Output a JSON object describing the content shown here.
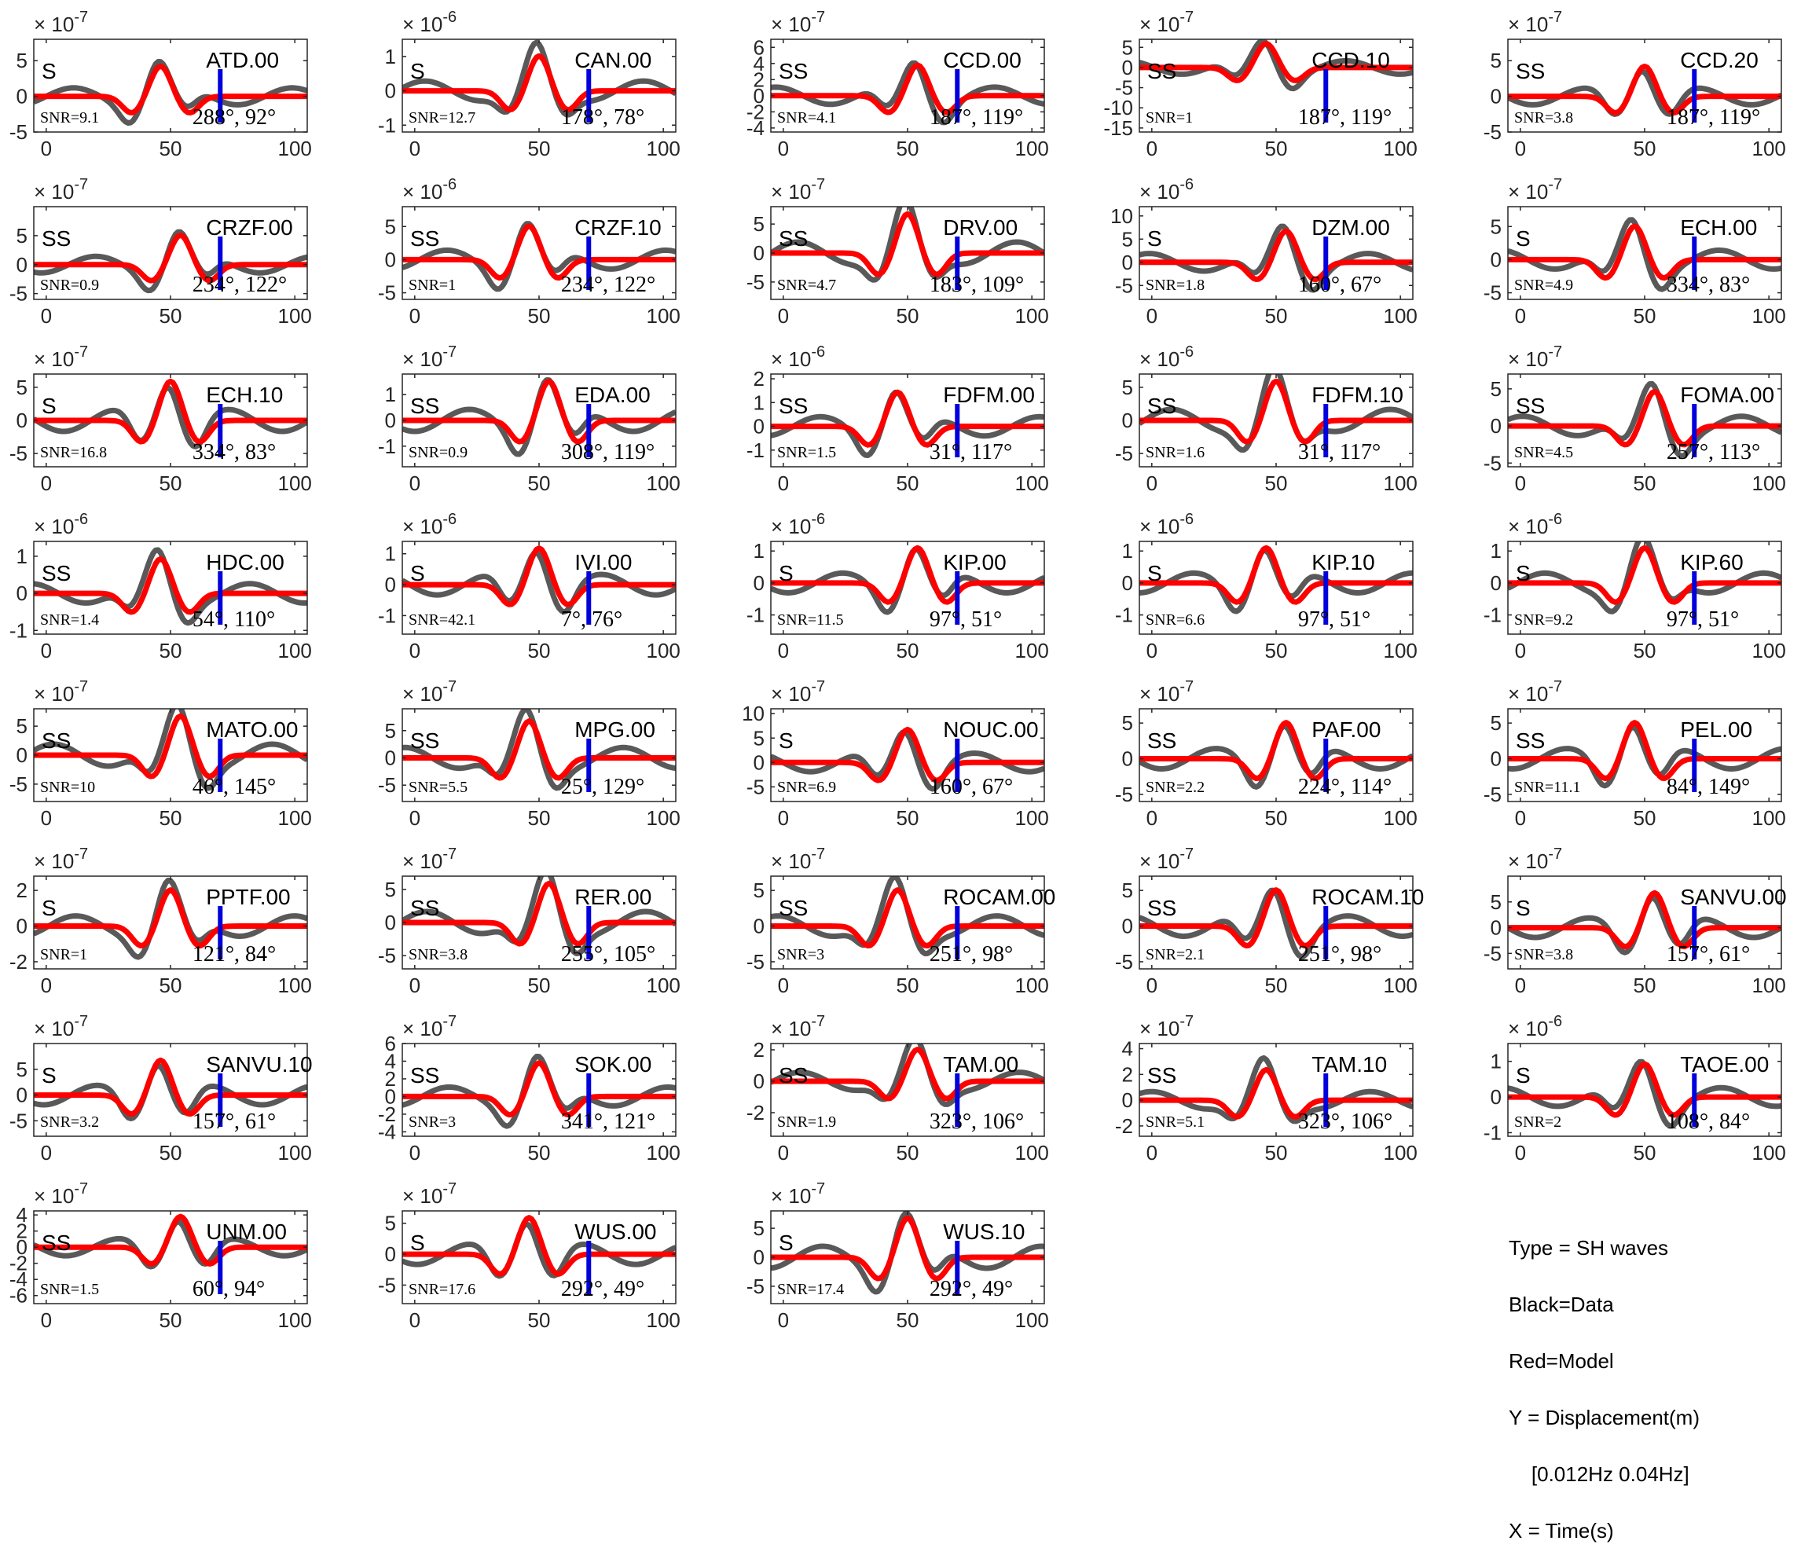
{
  "colors": {
    "data": "#595959",
    "model": "#ff0000",
    "marker": "#0000dd",
    "axes": "#262626"
  },
  "legend": {
    "lines": [
      "Type = SH waves",
      "Black=Data",
      "Red=Model",
      "Y = Displacement(m)",
      "    [0.012Hz 0.04Hz]",
      "X = Time(s)"
    ]
  },
  "chart_data": [
    {
      "type": "line",
      "title": "ATD.00",
      "phase": "S",
      "snr": "SNR=9.1",
      "angles": "288°, 92°",
      "exponent": "-7",
      "ylim": [
        -5,
        8
      ],
      "yticks": [
        -5,
        0,
        5
      ],
      "xlim": [
        -5,
        105
      ],
      "xticks": [
        0,
        50,
        100
      ],
      "marker_t": 70
    },
    {
      "type": "line",
      "title": "CAN.00",
      "phase": "S",
      "snr": "SNR=12.7",
      "angles": "178°, 78°",
      "exponent": "-6",
      "ylim": [
        -1.2,
        1.5
      ],
      "yticks": [
        -1,
        0,
        1
      ],
      "xlim": [
        -5,
        105
      ],
      "xticks": [
        0,
        50,
        100
      ],
      "marker_t": 70
    },
    {
      "type": "line",
      "title": "CCD.00",
      "phase": "SS",
      "snr": "SNR=4.1",
      "angles": "187°, 119°",
      "exponent": "-7",
      "ylim": [
        -4.5,
        7
      ],
      "yticks": [
        -4,
        -2,
        0,
        2,
        4,
        6
      ],
      "xlim": [
        -5,
        105
      ],
      "xticks": [
        0,
        50,
        100
      ],
      "marker_t": 70
    },
    {
      "type": "line",
      "title": "CCD.10",
      "phase": "SS",
      "snr": "SNR=1",
      "angles": "187°, 119°",
      "exponent": "-7",
      "ylim": [
        -16,
        7
      ],
      "yticks": [
        -15,
        -10,
        -5,
        0,
        5
      ],
      "xlim": [
        -5,
        105
      ],
      "xticks": [
        0,
        50,
        100
      ],
      "marker_t": 70
    },
    {
      "type": "line",
      "title": "CCD.20",
      "phase": "SS",
      "snr": "SNR=3.8",
      "angles": "187°, 119°",
      "exponent": "-7",
      "ylim": [
        -5,
        8
      ],
      "yticks": [
        -5,
        0,
        5
      ],
      "xlim": [
        -5,
        105
      ],
      "xticks": [
        0,
        50,
        100
      ],
      "marker_t": 70
    },
    {
      "type": "line",
      "title": "CRZF.00",
      "phase": "SS",
      "snr": "SNR=0.9",
      "angles": "234°, 122°",
      "exponent": "-7",
      "ylim": [
        -6,
        10
      ],
      "yticks": [
        -5,
        0,
        5
      ],
      "xlim": [
        -5,
        105
      ],
      "xticks": [
        0,
        50,
        100
      ],
      "marker_t": 70
    },
    {
      "type": "line",
      "title": "CRZF.10",
      "phase": "SS",
      "snr": "SNR=1",
      "angles": "234°, 122°",
      "exponent": "-6",
      "ylim": [
        -6,
        8
      ],
      "yticks": [
        -5,
        0,
        5
      ],
      "xlim": [
        -5,
        105
      ],
      "xticks": [
        0,
        50,
        100
      ],
      "marker_t": 70
    },
    {
      "type": "line",
      "title": "DRV.00",
      "phase": "SS",
      "snr": "SNR=4.7",
      "angles": "183°, 109°",
      "exponent": "-7",
      "ylim": [
        -8,
        8
      ],
      "yticks": [
        -5,
        0,
        5
      ],
      "xlim": [
        -5,
        105
      ],
      "xticks": [
        0,
        50,
        100
      ],
      "marker_t": 70
    },
    {
      "type": "line",
      "title": "DZM.00",
      "phase": "S",
      "snr": "SNR=1.8",
      "angles": "160°, 67°",
      "exponent": "-6",
      "ylim": [
        -8,
        12
      ],
      "yticks": [
        -5,
        0,
        5,
        10
      ],
      "xlim": [
        -5,
        105
      ],
      "xticks": [
        0,
        50,
        100
      ],
      "marker_t": 70
    },
    {
      "type": "line",
      "title": "ECH.00",
      "phase": "S",
      "snr": "SNR=4.9",
      "angles": "334°, 83°",
      "exponent": "-7",
      "ylim": [
        -6,
        8
      ],
      "yticks": [
        -5,
        0,
        5
      ],
      "xlim": [
        -5,
        105
      ],
      "xticks": [
        0,
        50,
        100
      ],
      "marker_t": 70
    },
    {
      "type": "line",
      "title": "ECH.10",
      "phase": "S",
      "snr": "SNR=16.8",
      "angles": "334°, 83°",
      "exponent": "-7",
      "ylim": [
        -7,
        7
      ],
      "yticks": [
        -5,
        0,
        5
      ],
      "xlim": [
        -5,
        105
      ],
      "xticks": [
        0,
        50,
        100
      ],
      "marker_t": 70
    },
    {
      "type": "line",
      "title": "EDA.00",
      "phase": "SS",
      "snr": "SNR=0.9",
      "angles": "308°, 119°",
      "exponent": "-7",
      "ylim": [
        -1.8,
        1.8
      ],
      "yticks": [
        -1,
        0,
        1
      ],
      "xlim": [
        -5,
        105
      ],
      "xticks": [
        0,
        50,
        100
      ],
      "marker_t": 70
    },
    {
      "type": "line",
      "title": "FDFM.00",
      "phase": "SS",
      "snr": "SNR=1.5",
      "angles": "31°, 117°",
      "exponent": "-6",
      "ylim": [
        -1.7,
        2.2
      ],
      "yticks": [
        -1,
        0,
        1,
        2
      ],
      "xlim": [
        -5,
        105
      ],
      "xticks": [
        0,
        50,
        100
      ],
      "marker_t": 70
    },
    {
      "type": "line",
      "title": "FDFM.10",
      "phase": "SS",
      "snr": "SNR=1.6",
      "angles": "31°, 117°",
      "exponent": "-6",
      "ylim": [
        -7,
        7
      ],
      "yticks": [
        -5,
        0,
        5
      ],
      "xlim": [
        -5,
        105
      ],
      "xticks": [
        0,
        50,
        100
      ],
      "marker_t": 70
    },
    {
      "type": "line",
      "title": "FOMA.00",
      "phase": "SS",
      "snr": "SNR=4.5",
      "angles": "257°, 113°",
      "exponent": "-7",
      "ylim": [
        -5.5,
        7
      ],
      "yticks": [
        -5,
        0,
        5
      ],
      "xlim": [
        -5,
        105
      ],
      "xticks": [
        0,
        50,
        100
      ],
      "marker_t": 70
    },
    {
      "type": "line",
      "title": "HDC.00",
      "phase": "SS",
      "snr": "SNR=1.4",
      "angles": "54°, 110°",
      "exponent": "-6",
      "ylim": [
        -1.1,
        1.4
      ],
      "yticks": [
        -1,
        0,
        1
      ],
      "xlim": [
        -5,
        105
      ],
      "xticks": [
        0,
        50,
        100
      ],
      "marker_t": 70
    },
    {
      "type": "line",
      "title": "IVI.00",
      "phase": "S",
      "snr": "SNR=42.1",
      "angles": "7°, 76°",
      "exponent": "-6",
      "ylim": [
        -1.6,
        1.4
      ],
      "yticks": [
        -1,
        0,
        1
      ],
      "xlim": [
        -5,
        105
      ],
      "xticks": [
        0,
        50,
        100
      ],
      "marker_t": 70
    },
    {
      "type": "line",
      "title": "KIP.00",
      "phase": "S",
      "snr": "SNR=11.5",
      "angles": "97°, 51°",
      "exponent": "-6",
      "ylim": [
        -1.6,
        1.3
      ],
      "yticks": [
        -1,
        0,
        1
      ],
      "xlim": [
        -5,
        105
      ],
      "xticks": [
        0,
        50,
        100
      ],
      "marker_t": 70
    },
    {
      "type": "line",
      "title": "KIP.10",
      "phase": "S",
      "snr": "SNR=6.6",
      "angles": "97°, 51°",
      "exponent": "-6",
      "ylim": [
        -1.6,
        1.3
      ],
      "yticks": [
        -1,
        0,
        1
      ],
      "xlim": [
        -5,
        105
      ],
      "xticks": [
        0,
        50,
        100
      ],
      "marker_t": 70
    },
    {
      "type": "line",
      "title": "KIP.60",
      "phase": "S",
      "snr": "SNR=9.2",
      "angles": "97°, 51°",
      "exponent": "-6",
      "ylim": [
        -1.6,
        1.3
      ],
      "yticks": [
        -1,
        0,
        1
      ],
      "xlim": [
        -5,
        105
      ],
      "xticks": [
        0,
        50,
        100
      ],
      "marker_t": 70
    },
    {
      "type": "line",
      "title": "MATO.00",
      "phase": "SS",
      "snr": "SNR=10",
      "angles": "46°, 145°",
      "exponent": "-7",
      "ylim": [
        -8,
        8
      ],
      "yticks": [
        -5,
        0,
        5
      ],
      "xlim": [
        -5,
        105
      ],
      "xticks": [
        0,
        50,
        100
      ],
      "marker_t": 70
    },
    {
      "type": "line",
      "title": "MPG.00",
      "phase": "SS",
      "snr": "SNR=5.5",
      "angles": "25°, 129°",
      "exponent": "-7",
      "ylim": [
        -8,
        9
      ],
      "yticks": [
        -5,
        0,
        5
      ],
      "xlim": [
        -5,
        105
      ],
      "xticks": [
        0,
        50,
        100
      ],
      "marker_t": 70
    },
    {
      "type": "line",
      "title": "NOUC.00",
      "phase": "S",
      "snr": "SNR=6.9",
      "angles": "160°, 67°",
      "exponent": "-7",
      "ylim": [
        -8,
        11
      ],
      "yticks": [
        -5,
        0,
        5,
        10
      ],
      "xlim": [
        -5,
        105
      ],
      "xticks": [
        0,
        50,
        100
      ],
      "marker_t": 70
    },
    {
      "type": "line",
      "title": "PAF.00",
      "phase": "SS",
      "snr": "SNR=2.2",
      "angles": "224°, 114°",
      "exponent": "-7",
      "ylim": [
        -6,
        7
      ],
      "yticks": [
        -5,
        0,
        5
      ],
      "xlim": [
        -5,
        105
      ],
      "xticks": [
        0,
        50,
        100
      ],
      "marker_t": 70
    },
    {
      "type": "line",
      "title": "PEL.00",
      "phase": "SS",
      "snr": "SNR=11.1",
      "angles": "84°, 149°",
      "exponent": "-7",
      "ylim": [
        -6,
        7
      ],
      "yticks": [
        -5,
        0,
        5
      ],
      "xlim": [
        -5,
        105
      ],
      "xticks": [
        0,
        50,
        100
      ],
      "marker_t": 70
    },
    {
      "type": "line",
      "title": "PPTF.00",
      "phase": "S",
      "snr": "SNR=1",
      "angles": "121°, 84°",
      "exponent": "-7",
      "ylim": [
        -2.4,
        2.8
      ],
      "yticks": [
        -2,
        0,
        2
      ],
      "xlim": [
        -5,
        105
      ],
      "xticks": [
        0,
        50,
        100
      ],
      "marker_t": 70
    },
    {
      "type": "line",
      "title": "RER.00",
      "phase": "SS",
      "snr": "SNR=3.8",
      "angles": "255°, 105°",
      "exponent": "-7",
      "ylim": [
        -7,
        7
      ],
      "yticks": [
        -5,
        0,
        5
      ],
      "xlim": [
        -5,
        105
      ],
      "xticks": [
        0,
        50,
        100
      ],
      "marker_t": 70
    },
    {
      "type": "line",
      "title": "ROCAM.00",
      "phase": "SS",
      "snr": "SNR=3",
      "angles": "251°, 98°",
      "exponent": "-7",
      "ylim": [
        -6,
        7
      ],
      "yticks": [
        -5,
        0,
        5
      ],
      "xlim": [
        -5,
        105
      ],
      "xticks": [
        0,
        50,
        100
      ],
      "marker_t": 70
    },
    {
      "type": "line",
      "title": "ROCAM.10",
      "phase": "SS",
      "snr": "SNR=2.1",
      "angles": "251°, 98°",
      "exponent": "-7",
      "ylim": [
        -6,
        7
      ],
      "yticks": [
        -5,
        0,
        5
      ],
      "xlim": [
        -5,
        105
      ],
      "xticks": [
        0,
        50,
        100
      ],
      "marker_t": 70
    },
    {
      "type": "line",
      "title": "SANVU.00",
      "phase": "S",
      "snr": "SNR=3.8",
      "angles": "157°, 61°",
      "exponent": "-7",
      "ylim": [
        -8,
        10
      ],
      "yticks": [
        -5,
        0,
        5
      ],
      "xlim": [
        -5,
        105
      ],
      "xticks": [
        0,
        50,
        100
      ],
      "marker_t": 70
    },
    {
      "type": "line",
      "title": "SANVU.10",
      "phase": "S",
      "snr": "SNR=3.2",
      "angles": "157°, 61°",
      "exponent": "-7",
      "ylim": [
        -8,
        10
      ],
      "yticks": [
        -5,
        0,
        5
      ],
      "xlim": [
        -5,
        105
      ],
      "xticks": [
        0,
        50,
        100
      ],
      "marker_t": 70
    },
    {
      "type": "line",
      "title": "SOK.00",
      "phase": "SS",
      "snr": "SNR=3",
      "angles": "341°, 121°",
      "exponent": "-7",
      "ylim": [
        -4.5,
        6
      ],
      "yticks": [
        -4,
        -2,
        0,
        2,
        4,
        6
      ],
      "xlim": [
        -5,
        105
      ],
      "xticks": [
        0,
        50,
        100
      ],
      "marker_t": 70
    },
    {
      "type": "line",
      "title": "TAM.00",
      "phase": "SS",
      "snr": "SNR=1.9",
      "angles": "323°, 106°",
      "exponent": "-7",
      "ylim": [
        -3.5,
        2.4
      ],
      "yticks": [
        -2,
        0,
        2
      ],
      "xlim": [
        -5,
        105
      ],
      "xticks": [
        0,
        50,
        100
      ],
      "marker_t": 70
    },
    {
      "type": "line",
      "title": "TAM.10",
      "phase": "SS",
      "snr": "SNR=5.1",
      "angles": "323°, 106°",
      "exponent": "-7",
      "ylim": [
        -2.8,
        4.4
      ],
      "yticks": [
        -2,
        0,
        2,
        4
      ],
      "xlim": [
        -5,
        105
      ],
      "xticks": [
        0,
        50,
        100
      ],
      "marker_t": 70
    },
    {
      "type": "line",
      "title": "TAOE.00",
      "phase": "S",
      "snr": "SNR=2",
      "angles": "108°, 84°",
      "exponent": "-6",
      "ylim": [
        -1.1,
        1.5
      ],
      "yticks": [
        -1,
        0,
        1
      ],
      "xlim": [
        -5,
        105
      ],
      "xticks": [
        0,
        50,
        100
      ],
      "marker_t": 70
    },
    {
      "type": "line",
      "title": "UNM.00",
      "phase": "SS",
      "snr": "SNR=1.5",
      "angles": "60°, 94°",
      "exponent": "-7",
      "ylim": [
        -7,
        4.5
      ],
      "yticks": [
        -6,
        -4,
        -2,
        0,
        2,
        4
      ],
      "xlim": [
        -5,
        105
      ],
      "xticks": [
        0,
        50,
        100
      ],
      "marker_t": 70
    },
    {
      "type": "line",
      "title": "WUS.00",
      "phase": "S",
      "snr": "SNR=17.6",
      "angles": "292°, 49°",
      "exponent": "-7",
      "ylim": [
        -8,
        7
      ],
      "yticks": [
        -5,
        0,
        5
      ],
      "xlim": [
        -5,
        105
      ],
      "xticks": [
        0,
        50,
        100
      ],
      "marker_t": 70
    },
    {
      "type": "line",
      "title": "WUS.10",
      "phase": "S",
      "snr": "SNR=17.4",
      "angles": "292°, 49°",
      "exponent": "-7",
      "ylim": [
        -8,
        8
      ],
      "yticks": [
        -5,
        0,
        5
      ],
      "xlim": [
        -5,
        105
      ],
      "xticks": [
        0,
        50,
        100
      ],
      "marker_t": 70
    }
  ]
}
